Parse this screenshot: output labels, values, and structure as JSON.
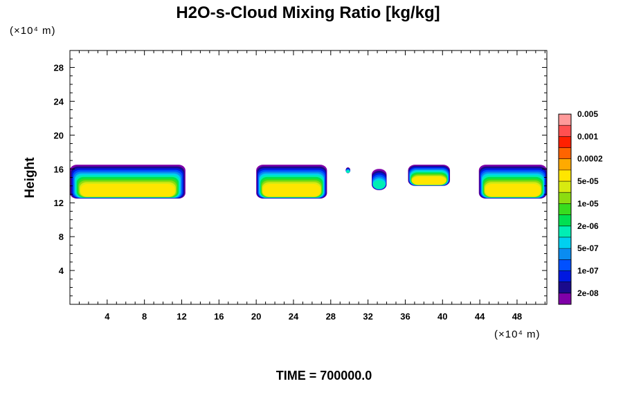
{
  "chart_data": {
    "type": "heatmap",
    "title": "H2O-s-Cloud Mixing Ratio [kg/kg]",
    "xlabel": "",
    "ylabel": "Height",
    "x_unit_label": "(×10⁴ m)",
    "y_unit_label": "(×10⁴ m)",
    "xlim": [
      0,
      51.2
    ],
    "ylim": [
      0,
      30
    ],
    "x_ticks": [
      4,
      8,
      12,
      16,
      20,
      24,
      28,
      32,
      36,
      40,
      44,
      48
    ],
    "y_ticks": [
      4,
      8,
      12,
      16,
      20,
      24,
      28
    ],
    "x_tick_labels": [
      "4",
      "8",
      "12",
      "16",
      "20",
      "24",
      "28",
      "32",
      "36",
      "40",
      "44",
      "48"
    ],
    "y_tick_labels": [
      "4",
      "8",
      "12",
      "16",
      "20",
      "24",
      "28"
    ],
    "grid": false,
    "time_label": "TIME = 700000.0",
    "colorbar": {
      "placement": "right",
      "colors": [
        "#7f00a8",
        "#1a0a8c",
        "#0018e0",
        "#0050ff",
        "#0a8cf0",
        "#00d0f0",
        "#00eeb4",
        "#00e050",
        "#38dc1e",
        "#8cdc10",
        "#d8ea10",
        "#ffe600",
        "#ffaa00",
        "#ff6400",
        "#ff2000",
        "#ff5050",
        "#ff9a9a"
      ],
      "tick_labels": [
        "2e-08",
        "1e-07",
        "5e-07",
        "2e-06",
        "1e-05",
        "5e-05",
        "0.0002",
        "0.001",
        "0.005"
      ]
    },
    "cloud_cells": [
      {
        "name": "cloud-west",
        "x": [
          0,
          12.4
        ],
        "y": [
          12.5,
          16.5
        ]
      },
      {
        "name": "cloud-central",
        "x": [
          20,
          27.6
        ],
        "y": [
          12.5,
          16.5
        ]
      },
      {
        "name": "cloud-small-1",
        "x": [
          29.6,
          30.1
        ],
        "y": [
          15.5,
          16.2
        ]
      },
      {
        "name": "cloud-small-2",
        "x": [
          32.4,
          34
        ],
        "y": [
          13.5,
          16
        ]
      },
      {
        "name": "cloud-east-small",
        "x": [
          36.3,
          40.8
        ],
        "y": [
          14,
          16.5
        ]
      },
      {
        "name": "cloud-east",
        "x": [
          43.9,
          51.2
        ],
        "y": [
          12.5,
          16.5
        ]
      }
    ]
  }
}
